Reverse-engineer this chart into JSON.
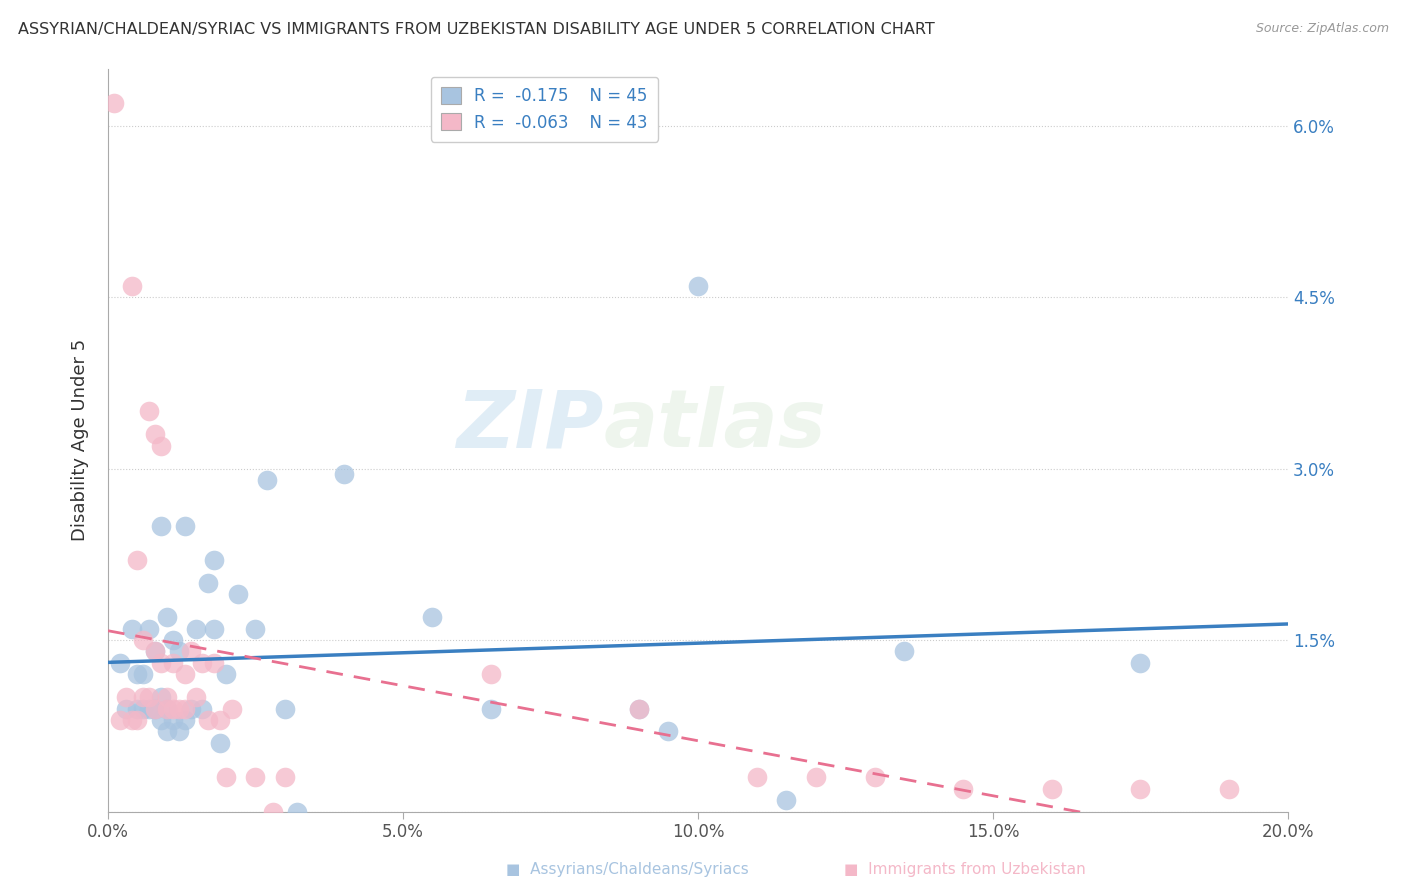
{
  "title": "ASSYRIAN/CHALDEAN/SYRIAC VS IMMIGRANTS FROM UZBEKISTAN DISABILITY AGE UNDER 5 CORRELATION CHART",
  "source": "Source: ZipAtlas.com",
  "ylabel": "Disability Age Under 5",
  "legend_label1": "Assyrians/Chaldeans/Syriacs",
  "legend_label2": "Immigrants from Uzbekistan",
  "r1": "-0.175",
  "n1": "45",
  "r2": "-0.063",
  "n2": "43",
  "color1": "#a8c4e0",
  "color2": "#f4b8c8",
  "trend_color1": "#3a7fc1",
  "trend_color2": "#e87090",
  "watermark_zip": "ZIP",
  "watermark_atlas": "atlas",
  "xlim": [
    0.0,
    0.2
  ],
  "ylim": [
    0.0,
    0.065
  ],
  "yticks": [
    0.0,
    0.015,
    0.03,
    0.045,
    0.06
  ],
  "ytick_labels": [
    "",
    "1.5%",
    "3.0%",
    "4.5%",
    "6.0%"
  ],
  "xticks": [
    0.0,
    0.05,
    0.1,
    0.15,
    0.2
  ],
  "xtick_labels": [
    "0.0%",
    "5.0%",
    "10.0%",
    "15.0%",
    "20.0%"
  ],
  "blue_scatter_x": [
    0.002,
    0.003,
    0.004,
    0.005,
    0.005,
    0.006,
    0.006,
    0.007,
    0.007,
    0.008,
    0.008,
    0.009,
    0.009,
    0.009,
    0.01,
    0.01,
    0.01,
    0.011,
    0.011,
    0.012,
    0.012,
    0.013,
    0.013,
    0.014,
    0.015,
    0.016,
    0.017,
    0.018,
    0.018,
    0.019,
    0.02,
    0.022,
    0.025,
    0.027,
    0.03,
    0.032,
    0.04,
    0.055,
    0.065,
    0.09,
    0.095,
    0.1,
    0.115,
    0.135,
    0.175
  ],
  "blue_scatter_y": [
    0.013,
    0.009,
    0.016,
    0.009,
    0.012,
    0.009,
    0.012,
    0.009,
    0.016,
    0.009,
    0.014,
    0.008,
    0.01,
    0.025,
    0.007,
    0.009,
    0.017,
    0.008,
    0.015,
    0.007,
    0.014,
    0.008,
    0.025,
    0.009,
    0.016,
    0.009,
    0.02,
    0.022,
    0.016,
    0.006,
    0.012,
    0.019,
    0.016,
    0.029,
    0.009,
    0.0,
    0.0295,
    0.017,
    0.009,
    0.009,
    0.007,
    0.046,
    0.001,
    0.014,
    0.013
  ],
  "pink_scatter_x": [
    0.001,
    0.002,
    0.003,
    0.004,
    0.004,
    0.005,
    0.005,
    0.006,
    0.006,
    0.007,
    0.007,
    0.008,
    0.008,
    0.008,
    0.009,
    0.009,
    0.01,
    0.01,
    0.011,
    0.011,
    0.012,
    0.013,
    0.013,
    0.014,
    0.015,
    0.016,
    0.017,
    0.018,
    0.019,
    0.02,
    0.021,
    0.025,
    0.028,
    0.03,
    0.065,
    0.09,
    0.11,
    0.12,
    0.13,
    0.145,
    0.16,
    0.175,
    0.19
  ],
  "pink_scatter_y": [
    0.062,
    0.008,
    0.01,
    0.008,
    0.046,
    0.008,
    0.022,
    0.01,
    0.015,
    0.01,
    0.035,
    0.009,
    0.014,
    0.033,
    0.013,
    0.032,
    0.009,
    0.01,
    0.009,
    0.013,
    0.009,
    0.009,
    0.012,
    0.014,
    0.01,
    0.013,
    0.008,
    0.013,
    0.008,
    0.003,
    0.009,
    0.003,
    0.0,
    0.003,
    0.012,
    0.009,
    0.003,
    0.003,
    0.003,
    0.002,
    0.002,
    0.002,
    0.002
  ]
}
